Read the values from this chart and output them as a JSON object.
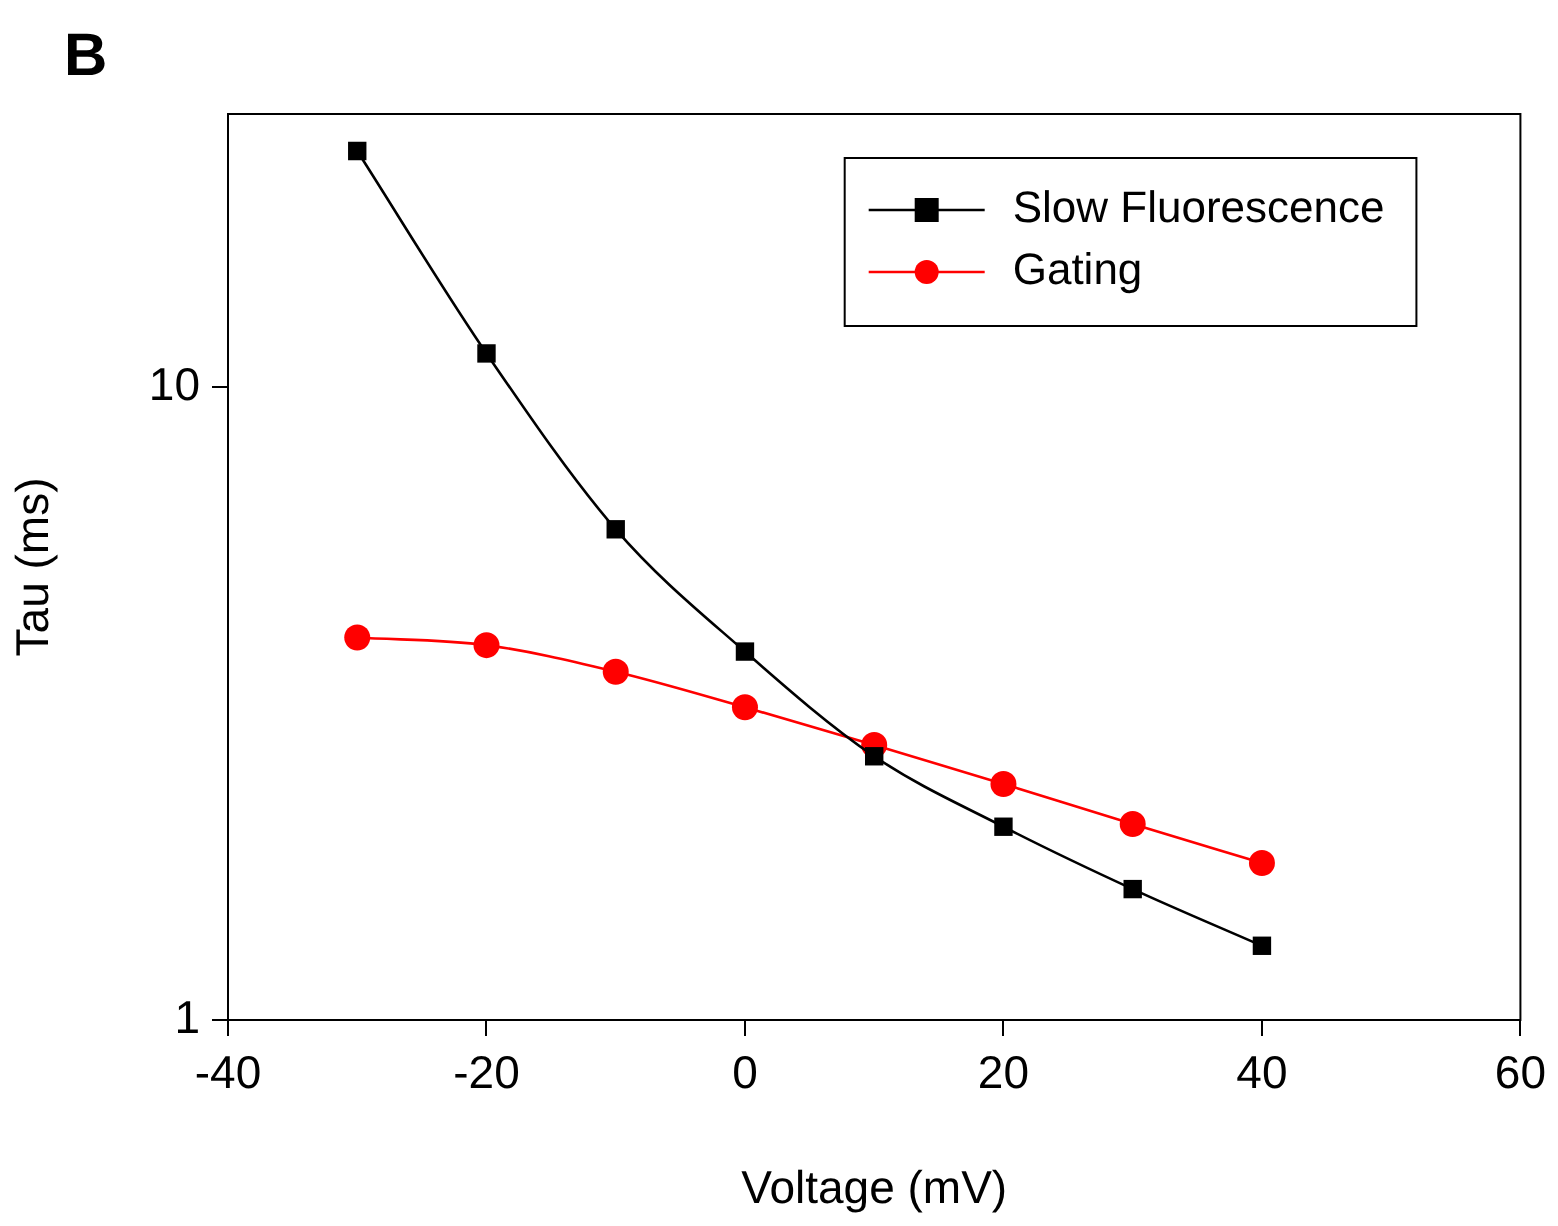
{
  "chart_data": {
    "type": "line",
    "xlabel": "Voltage (mV)",
    "ylabel": "Tau (ms)",
    "annotations": [
      "B"
    ],
    "x": [
      -30,
      -20,
      -10,
      0,
      10,
      20,
      30,
      40
    ],
    "series": [
      {
        "name": "Slow Fluorescence",
        "color": "#000000",
        "marker": "square",
        "values": [
          23.6,
          11.3,
          5.96,
          3.82,
          2.61,
          2.02,
          1.61,
          1.31
        ]
      },
      {
        "name": "Gating",
        "color": "#ff0000",
        "marker": "circle",
        "values": [
          4.02,
          3.91,
          3.55,
          3.12,
          2.72,
          2.36,
          2.04,
          1.77
        ]
      }
    ],
    "log": "y",
    "xlim": [
      -40,
      60
    ],
    "xticks": [
      -40,
      -20,
      0,
      20,
      40,
      60
    ],
    "ylim": [
      1,
      27
    ],
    "yticks": [
      1,
      10
    ],
    "grid": false,
    "legend": "top right",
    "line_style": "solid"
  }
}
